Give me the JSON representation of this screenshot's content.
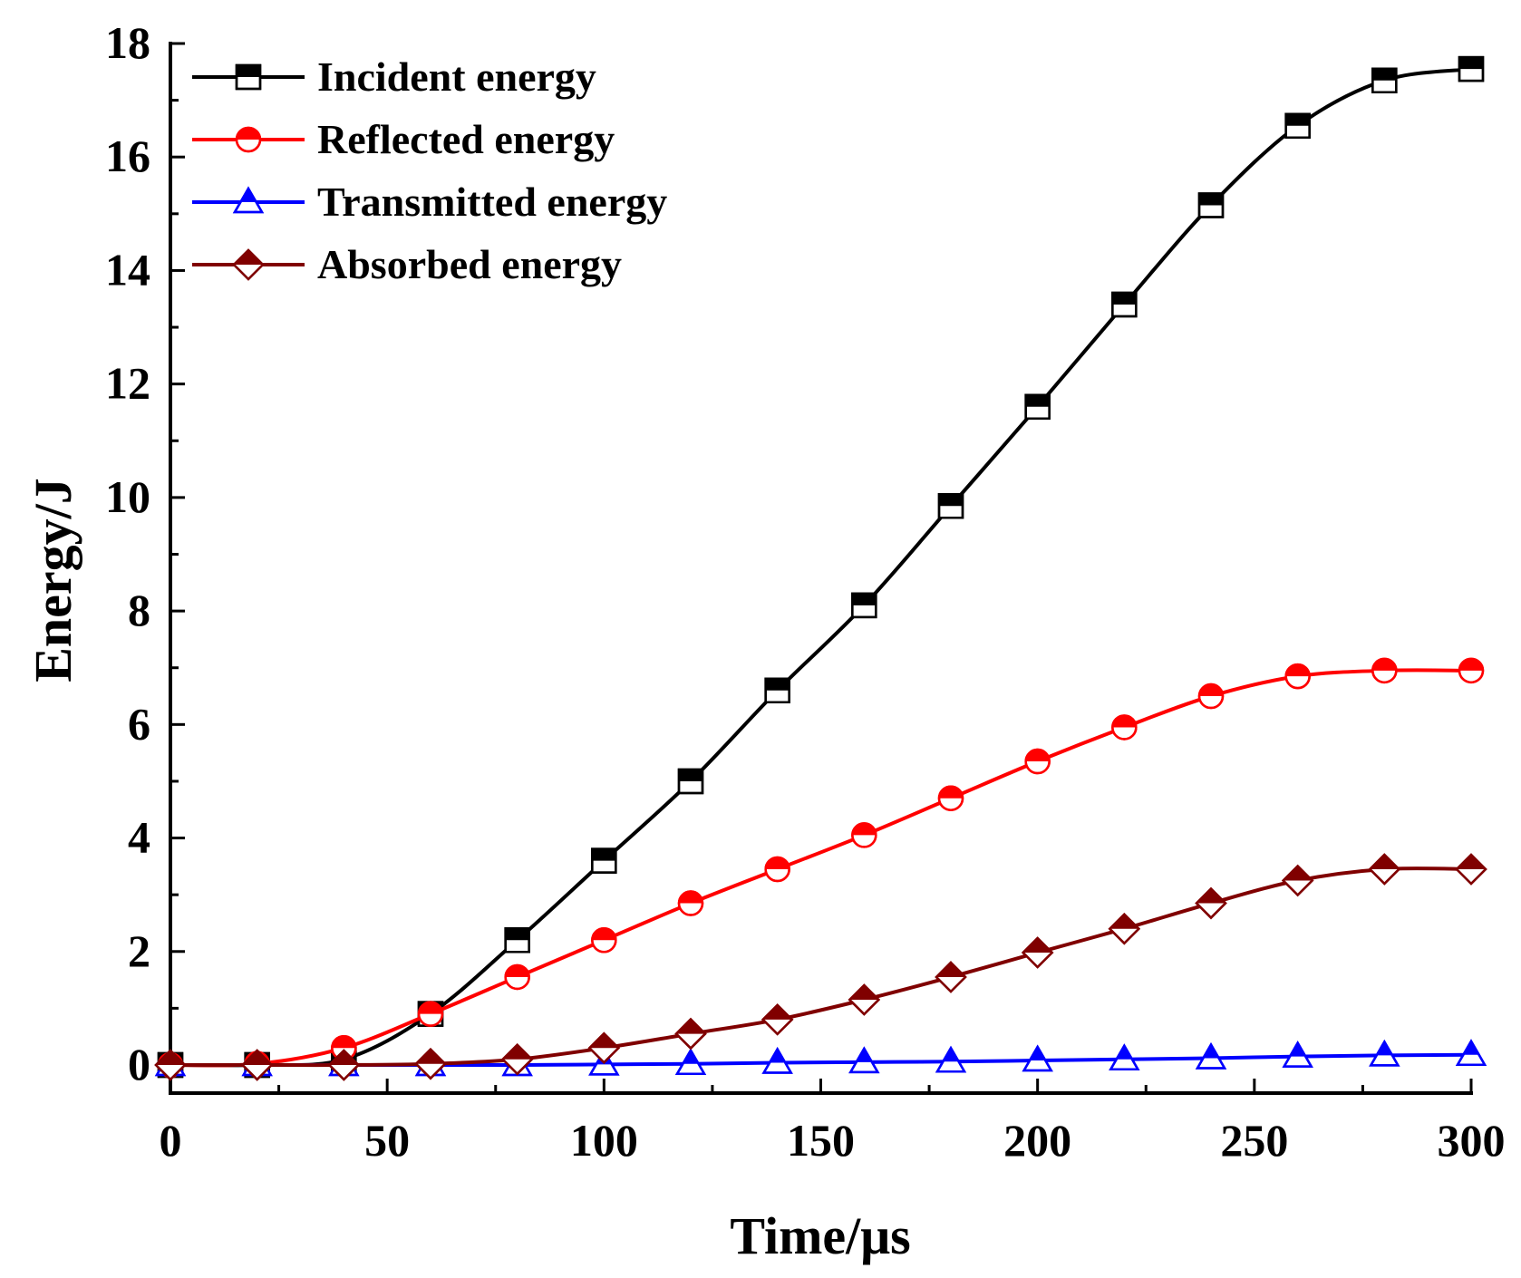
{
  "chart_data": {
    "type": "line",
    "title": "",
    "xlabel": "Time/μs",
    "ylabel": "Energy/J",
    "xlim": [
      0,
      300
    ],
    "ylim": [
      0,
      18
    ],
    "xticks": [
      "0",
      "50",
      "100",
      "150",
      "200",
      "250",
      "300"
    ],
    "yticks": [
      "0",
      "2",
      "4",
      "6",
      "8",
      "10",
      "12",
      "14",
      "16",
      "18"
    ],
    "grid": false,
    "legend_position": "top-left",
    "x": [
      0,
      20,
      40,
      60,
      80,
      100,
      120,
      140,
      160,
      180,
      200,
      220,
      240,
      260,
      280,
      300
    ],
    "series": [
      {
        "name": "Incident energy",
        "color": "#000000",
        "marker": "square",
        "values": [
          0,
          0,
          0.1,
          0.9,
          2.2,
          3.6,
          5.0,
          6.6,
          8.1,
          9.85,
          11.6,
          13.4,
          15.15,
          16.55,
          17.35,
          17.55
        ]
      },
      {
        "name": "Reflected energy",
        "color": "#ff0000",
        "marker": "circle",
        "values": [
          0,
          0.02,
          0.3,
          0.9,
          1.55,
          2.2,
          2.85,
          3.45,
          4.05,
          4.7,
          5.35,
          5.95,
          6.5,
          6.85,
          6.95,
          6.95
        ]
      },
      {
        "name": "Transmitted energy",
        "color": "#0000ff",
        "marker": "triangle",
        "values": [
          0,
          0,
          0,
          0,
          0,
          0.01,
          0.02,
          0.04,
          0.05,
          0.06,
          0.08,
          0.1,
          0.12,
          0.15,
          0.17,
          0.18
        ]
      },
      {
        "name": "Absorbed energy",
        "color": "#800000",
        "marker": "diamond",
        "values": [
          0,
          0,
          0,
          0.02,
          0.1,
          0.3,
          0.55,
          0.8,
          1.15,
          1.55,
          1.98,
          2.4,
          2.85,
          3.25,
          3.45,
          3.45
        ]
      }
    ]
  }
}
